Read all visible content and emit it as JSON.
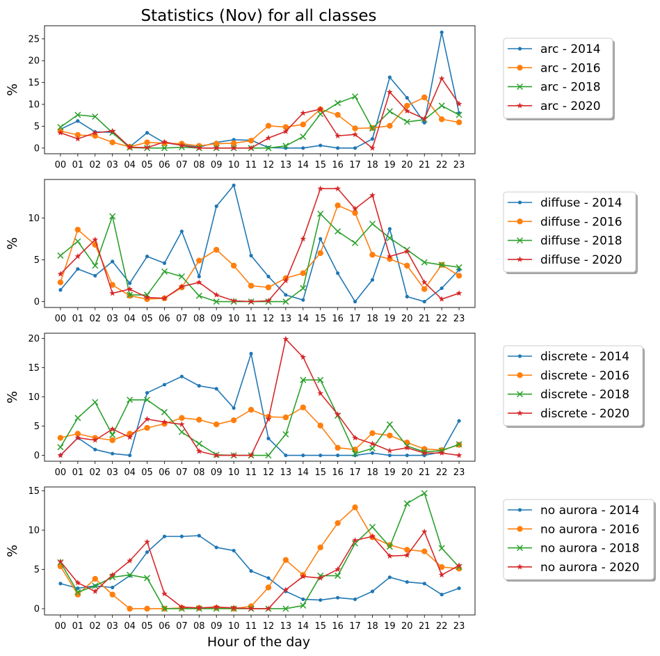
{
  "figure": {
    "title": "Statistics (Nov) for all classes",
    "xlabel": "Hour of the day"
  },
  "colors": {
    "s2014": "#1f77b4",
    "s2016": "#ff7f0e",
    "s2018": "#2ca02c",
    "s2020": "#d62728"
  },
  "chart_data": [
    {
      "type": "line",
      "class": "arc",
      "ylabel": "%",
      "ylim": [
        -1.3,
        28
      ],
      "yticks": [
        0,
        5,
        10,
        15,
        20,
        25
      ],
      "categories": [
        "00",
        "01",
        "02",
        "03",
        "04",
        "05",
        "06",
        "07",
        "08",
        "09",
        "10",
        "11",
        "12",
        "13",
        "14",
        "15",
        "16",
        "17",
        "18",
        "19",
        "20",
        "21",
        "22",
        "23"
      ],
      "series": [
        {
          "name": "arc - 2014",
          "marker": "dot",
          "values": [
            4.3,
            6.2,
            3.7,
            3.6,
            0.3,
            3.5,
            1.2,
            0.7,
            0.2,
            1.3,
            1.9,
            1.8,
            0.1,
            0.0,
            0.0,
            0.6,
            0.0,
            0.0,
            2.1,
            16.2,
            11.5,
            5.8,
            26.5,
            8.0
          ]
        },
        {
          "name": "arc - 2016",
          "marker": "circle",
          "values": [
            3.9,
            3.0,
            2.8,
            1.3,
            0.3,
            1.3,
            1.1,
            1.0,
            0.5,
            1.0,
            1.1,
            1.7,
            5.1,
            4.8,
            5.4,
            8.9,
            7.6,
            4.5,
            4.6,
            5.1,
            9.7,
            11.6,
            6.6,
            5.9
          ]
        },
        {
          "name": "arc - 2018",
          "marker": "x",
          "values": [
            4.8,
            7.6,
            7.2,
            3.5,
            0.1,
            0.0,
            0.0,
            0.2,
            0.0,
            0.0,
            0.0,
            0.0,
            0.0,
            0.5,
            2.6,
            7.8,
            10.3,
            11.8,
            4.5,
            8.4,
            6.0,
            6.5,
            9.7,
            7.6
          ]
        },
        {
          "name": "arc - 2020",
          "marker": "star",
          "values": [
            3.5,
            2.1,
            3.5,
            3.9,
            0.2,
            0.1,
            1.4,
            0.6,
            0.0,
            0.0,
            0.0,
            0.0,
            2.3,
            3.8,
            8.0,
            8.9,
            2.8,
            3.1,
            0.0,
            12.8,
            8.5,
            6.7,
            15.9,
            10.1
          ]
        }
      ]
    },
    {
      "type": "line",
      "class": "diffuse",
      "ylabel": "%",
      "ylim": [
        -0.7,
        14.6
      ],
      "yticks": [
        0,
        5,
        10
      ],
      "categories": [
        "00",
        "01",
        "02",
        "03",
        "04",
        "05",
        "06",
        "07",
        "08",
        "09",
        "10",
        "11",
        "12",
        "13",
        "14",
        "15",
        "16",
        "17",
        "18",
        "19",
        "20",
        "21",
        "22",
        "23"
      ],
      "series": [
        {
          "name": "diffuse - 2014",
          "marker": "dot",
          "values": [
            1.4,
            3.9,
            3.1,
            4.8,
            2.2,
            5.4,
            4.6,
            8.4,
            3.0,
            11.4,
            13.9,
            5.5,
            3.0,
            0.8,
            0.2,
            7.5,
            3.4,
            0.0,
            2.6,
            8.7,
            0.6,
            0.0,
            1.6,
            3.8
          ]
        },
        {
          "name": "diffuse - 2016",
          "marker": "circle",
          "values": [
            2.3,
            8.6,
            6.8,
            2.0,
            0.7,
            0.3,
            0.4,
            1.7,
            4.9,
            6.2,
            4.3,
            1.9,
            1.7,
            2.8,
            3.4,
            5.8,
            11.5,
            10.6,
            5.6,
            5.1,
            4.3,
            1.5,
            4.4,
            3.1
          ]
        },
        {
          "name": "diffuse - 2018",
          "marker": "x",
          "values": [
            5.5,
            7.2,
            4.3,
            10.2,
            0.8,
            0.8,
            3.6,
            3.0,
            0.7,
            0.0,
            0.0,
            0.0,
            0.0,
            0.0,
            1.6,
            10.5,
            8.4,
            7.0,
            9.3,
            7.6,
            6.2,
            4.7,
            4.4,
            4.1
          ]
        },
        {
          "name": "diffuse - 2020",
          "marker": "star",
          "values": [
            3.3,
            5.4,
            7.4,
            1.0,
            1.5,
            0.5,
            0.4,
            1.8,
            2.3,
            0.8,
            0.1,
            0.0,
            0.1,
            2.5,
            7.5,
            13.5,
            13.5,
            11.1,
            12.7,
            5.4,
            6.0,
            2.3,
            0.3,
            1.0
          ]
        }
      ]
    },
    {
      "type": "line",
      "class": "discrete",
      "ylabel": "%",
      "ylim": [
        -1.0,
        20.9
      ],
      "yticks": [
        0,
        5,
        10,
        15,
        20
      ],
      "categories": [
        "00",
        "01",
        "02",
        "03",
        "04",
        "05",
        "06",
        "07",
        "08",
        "09",
        "10",
        "11",
        "12",
        "13",
        "14",
        "15",
        "16",
        "17",
        "18",
        "19",
        "20",
        "21",
        "22",
        "23"
      ],
      "series": [
        {
          "name": "discrete - 2014",
          "marker": "dot",
          "values": [
            0.0,
            3.0,
            1.0,
            0.3,
            0.0,
            10.7,
            12.1,
            13.5,
            11.9,
            11.4,
            8.1,
            17.4,
            2.9,
            0.0,
            0.0,
            0.0,
            0.0,
            0.0,
            0.4,
            0.0,
            0.0,
            0.0,
            0.6,
            5.9
          ]
        },
        {
          "name": "discrete - 2016",
          "marker": "circle",
          "values": [
            3.0,
            3.7,
            3.0,
            2.6,
            3.7,
            4.7,
            5.4,
            6.4,
            6.1,
            5.3,
            6.0,
            7.8,
            6.6,
            6.5,
            8.2,
            5.1,
            1.3,
            1.0,
            3.8,
            3.4,
            2.2,
            1.1,
            0.9,
            1.8
          ]
        },
        {
          "name": "discrete - 2018",
          "marker": "x",
          "values": [
            1.4,
            6.4,
            9.1,
            3.5,
            9.5,
            9.5,
            7.4,
            4.0,
            2.0,
            0.1,
            0.0,
            0.0,
            0.0,
            3.6,
            12.9,
            12.9,
            6.8,
            0.3,
            1.2,
            5.3,
            1.6,
            0.6,
            0.8,
            1.9
          ]
        },
        {
          "name": "discrete - 2020",
          "marker": "star",
          "values": [
            0.0,
            3.0,
            2.6,
            4.5,
            3.1,
            6.2,
            5.7,
            5.3,
            0.7,
            0.0,
            0.0,
            0.0,
            6.2,
            19.9,
            16.8,
            10.6,
            7.0,
            3.0,
            2.0,
            0.8,
            1.3,
            0.4,
            0.4,
            0.0
          ]
        }
      ]
    },
    {
      "type": "line",
      "class": "no aurora",
      "ylabel": "%",
      "ylim": [
        -0.8,
        15.5
      ],
      "yticks": [
        0,
        5,
        10,
        15
      ],
      "categories": [
        "00",
        "01",
        "02",
        "03",
        "04",
        "05",
        "06",
        "07",
        "08",
        "09",
        "10",
        "11",
        "12",
        "13",
        "14",
        "15",
        "16",
        "17",
        "18",
        "19",
        "20",
        "21",
        "22",
        "23"
      ],
      "series": [
        {
          "name": "no aurora - 2014",
          "marker": "dot",
          "values": [
            3.2,
            2.6,
            2.9,
            2.7,
            4.2,
            7.2,
            9.2,
            9.2,
            9.3,
            7.8,
            7.4,
            4.8,
            3.9,
            2.2,
            1.2,
            1.1,
            1.4,
            1.2,
            2.2,
            4.0,
            3.4,
            3.2,
            1.8,
            2.6
          ]
        },
        {
          "name": "no aurora - 2016",
          "marker": "circle",
          "values": [
            5.4,
            1.8,
            3.8,
            1.8,
            0.0,
            0.0,
            0.0,
            0.1,
            0.1,
            0.1,
            0.0,
            0.3,
            2.7,
            6.2,
            4.3,
            7.8,
            10.9,
            12.9,
            9.1,
            8.1,
            7.5,
            7.3,
            5.3,
            5.1
          ]
        },
        {
          "name": "no aurora - 2018",
          "marker": "x",
          "values": [
            5.9,
            2.1,
            2.9,
            4.0,
            4.3,
            3.9,
            0.0,
            0.0,
            0.0,
            0.0,
            0.0,
            0.0,
            0.0,
            0.0,
            0.4,
            4.2,
            4.2,
            8.3,
            10.4,
            7.9,
            13.4,
            14.7,
            7.7,
            5.3
          ]
        },
        {
          "name": "no aurora - 2020",
          "marker": "star",
          "values": [
            6.0,
            3.3,
            2.2,
            4.3,
            6.1,
            8.5,
            1.9,
            0.2,
            0.1,
            0.2,
            0.1,
            0.0,
            0.0,
            2.4,
            4.1,
            3.9,
            5.0,
            8.7,
            9.2,
            6.7,
            6.8,
            9.8,
            4.3,
            5.5
          ]
        }
      ]
    }
  ]
}
